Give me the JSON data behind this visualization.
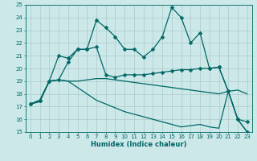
{
  "background_color": "#cce8e8",
  "grid_color": "#aacccc",
  "line_color": "#006666",
  "xlabel": "Humidex (Indice chaleur)",
  "ylim": [
    15,
    25
  ],
  "xlim": [
    -0.5,
    23.5
  ],
  "yticks": [
    15,
    16,
    17,
    18,
    19,
    20,
    21,
    22,
    23,
    24,
    25
  ],
  "xticks": [
    0,
    1,
    2,
    3,
    4,
    5,
    6,
    7,
    8,
    9,
    10,
    11,
    12,
    13,
    14,
    15,
    16,
    17,
    18,
    19,
    20,
    21,
    22,
    23
  ],
  "series": [
    {
      "x": [
        0,
        1,
        2,
        3,
        4,
        5,
        6,
        7,
        8,
        9,
        10,
        11,
        12,
        13,
        14,
        15,
        16,
        17,
        18,
        19,
        20,
        21,
        22,
        23
      ],
      "y": [
        17.2,
        17.5,
        19.0,
        21.0,
        20.8,
        21.5,
        21.5,
        23.8,
        23.2,
        22.5,
        21.5,
        21.5,
        20.9,
        21.5,
        22.5,
        24.8,
        24.0,
        22.0,
        22.8,
        20.0,
        20.1,
        18.2,
        16.0,
        15.8
      ],
      "marker": "D",
      "markersize": 2.5,
      "linewidth": 0.9
    },
    {
      "x": [
        0,
        1,
        2,
        3,
        4,
        5,
        6,
        7,
        8,
        9,
        10,
        11,
        12,
        13,
        14,
        15,
        16,
        17,
        18,
        19,
        20,
        21,
        22,
        23
      ],
      "y": [
        17.2,
        17.5,
        19.0,
        19.1,
        20.5,
        21.5,
        21.5,
        21.7,
        19.5,
        19.3,
        19.5,
        19.5,
        19.5,
        19.6,
        19.7,
        19.8,
        19.9,
        19.9,
        20.0,
        20.0,
        20.1,
        18.2,
        16.0,
        15.0
      ],
      "marker": "D",
      "markersize": 2.5,
      "linewidth": 0.9
    },
    {
      "x": [
        0,
        1,
        2,
        3,
        4,
        5,
        6,
        7,
        8,
        9,
        10,
        11,
        12,
        13,
        14,
        15,
        16,
        17,
        18,
        19,
        20,
        21,
        22,
        23
      ],
      "y": [
        17.2,
        17.4,
        19.0,
        19.1,
        19.0,
        19.0,
        19.1,
        19.2,
        19.2,
        19.1,
        19.0,
        18.9,
        18.8,
        18.7,
        18.6,
        18.5,
        18.4,
        18.3,
        18.2,
        18.1,
        18.0,
        18.2,
        18.3,
        18.0
      ],
      "marker": null,
      "markersize": 0,
      "linewidth": 0.9
    },
    {
      "x": [
        0,
        1,
        2,
        3,
        4,
        5,
        6,
        7,
        8,
        9,
        10,
        11,
        12,
        13,
        14,
        15,
        16,
        17,
        18,
        19,
        20,
        21,
        22,
        23
      ],
      "y": [
        17.2,
        17.4,
        19.0,
        19.1,
        19.0,
        18.5,
        18.0,
        17.5,
        17.2,
        16.9,
        16.6,
        16.4,
        16.2,
        16.0,
        15.8,
        15.6,
        15.4,
        15.5,
        15.6,
        15.4,
        15.3,
        18.2,
        16.0,
        15.0
      ],
      "marker": null,
      "markersize": 0,
      "linewidth": 0.9
    }
  ]
}
